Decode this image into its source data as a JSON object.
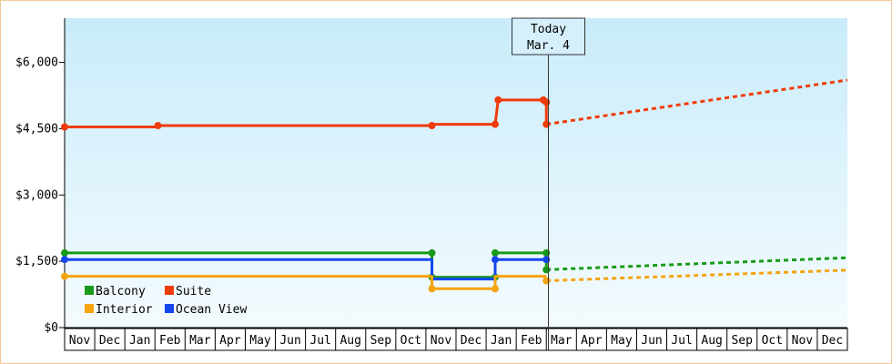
{
  "chart_data": {
    "type": "line",
    "title": "",
    "xlabel": "",
    "ylabel": "",
    "ylim": [
      0,
      7000
    ],
    "y_ticks": [
      0,
      1500,
      3000,
      4500,
      6000
    ],
    "y_tick_labels": [
      "$0",
      "$1,500",
      "$3,000",
      "$4,500",
      "$6,000"
    ],
    "x_tick_labels": [
      "Nov",
      "Dec",
      "Jan",
      "Feb",
      "Mar",
      "Apr",
      "May",
      "Jun",
      "Jul",
      "Aug",
      "Sep",
      "Oct",
      "Nov",
      "Dec",
      "Jan",
      "Feb",
      "Mar",
      "Apr",
      "May",
      "Jun",
      "Jul",
      "Aug",
      "Sep",
      "Oct",
      "Nov",
      "Dec"
    ],
    "today_marker": {
      "line1": "Today",
      "line2": "Mar. 4",
      "x": 16.1
    },
    "legend": [
      {
        "label": "Balcony",
        "color": "#1a9a1a"
      },
      {
        "label": "Suite",
        "color": "#f03c0a"
      },
      {
        "label": "Interior",
        "color": "#f5a40f"
      },
      {
        "label": "Ocean View",
        "color": "#1446f0"
      }
    ],
    "series": [
      {
        "name": "Suite",
        "color": "#f03c0a",
        "x": [
          0,
          3.1,
          3.1,
          12.2,
          12.2,
          14.3,
          14.4,
          15.9,
          16.0,
          16.0
        ],
        "y": [
          4540,
          4540,
          4570,
          4570,
          4600,
          4600,
          5150,
          5150,
          5100,
          4600
        ],
        "markers": [
          0,
          3.1,
          12.2,
          14.3,
          14.4,
          15.9,
          16.0,
          16.0
        ],
        "marker_y": [
          4540,
          4570,
          4570,
          4600,
          5150,
          5150,
          5100,
          4600
        ],
        "forecast_x": [
          16.0,
          26
        ],
        "forecast_y": [
          4600,
          5600
        ]
      },
      {
        "name": "Balcony",
        "color": "#1a9a1a",
        "x": [
          0,
          12.2,
          12.2,
          14.3,
          14.3,
          16.0,
          16.0
        ],
        "y": [
          1690,
          1690,
          1140,
          1140,
          1690,
          1690,
          1310
        ],
        "markers": [
          0,
          12.2,
          12.2,
          14.3,
          14.3,
          16.0,
          16.0
        ],
        "marker_y": [
          1690,
          1690,
          1140,
          1140,
          1690,
          1690,
          1310
        ],
        "forecast_x": [
          16.0,
          26
        ],
        "forecast_y": [
          1310,
          1580
        ]
      },
      {
        "name": "Ocean View",
        "color": "#1446f0",
        "x": [
          0,
          12.2,
          12.2,
          14.3,
          14.3,
          16.0
        ],
        "y": [
          1540,
          1540,
          1100,
          1100,
          1540,
          1540
        ],
        "markers": [
          0,
          14.3,
          16.0
        ],
        "marker_y": [
          1540,
          1540,
          1540
        ],
        "forecast_x": [],
        "forecast_y": []
      },
      {
        "name": "Interior",
        "color": "#f5a40f",
        "x": [
          0,
          12.2,
          12.2,
          14.3,
          14.3,
          16.0
        ],
        "y": [
          1160,
          1160,
          880,
          880,
          1160,
          1160
        ],
        "markers": [
          0,
          12.2,
          14.3,
          16.0
        ],
        "marker_y": [
          1160,
          880,
          880,
          1060
        ],
        "forecast_x": [
          16.0,
          26
        ],
        "forecast_y": [
          1060,
          1300
        ]
      }
    ]
  }
}
